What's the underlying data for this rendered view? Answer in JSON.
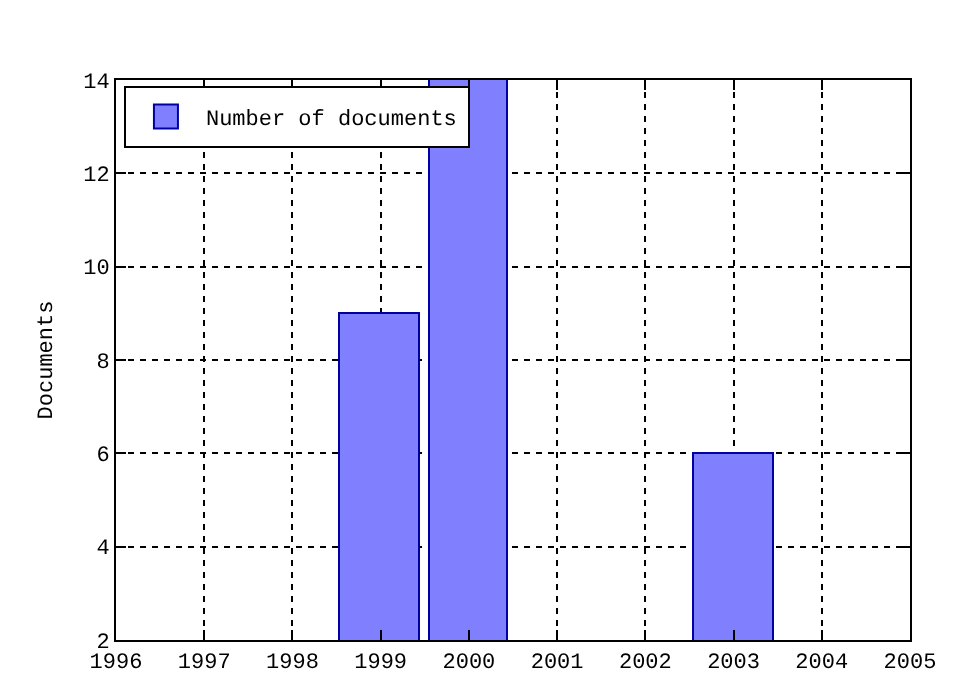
{
  "chart_data": {
    "type": "bar",
    "ylabel": "Documents",
    "x": [
      1999,
      2000,
      2003
    ],
    "series": [
      {
        "name": "Number of documents",
        "color": "#8080ff",
        "values": [
          9,
          14,
          6
        ]
      }
    ],
    "xlim": [
      1996,
      2005
    ],
    "xticks": [
      1996,
      1997,
      1998,
      1999,
      2000,
      2001,
      2002,
      2003,
      2004,
      2005
    ],
    "ylim": [
      2,
      14
    ],
    "yticks": [
      2,
      4,
      6,
      8,
      10,
      12,
      14
    ],
    "grid": true,
    "legend": "top left"
  }
}
